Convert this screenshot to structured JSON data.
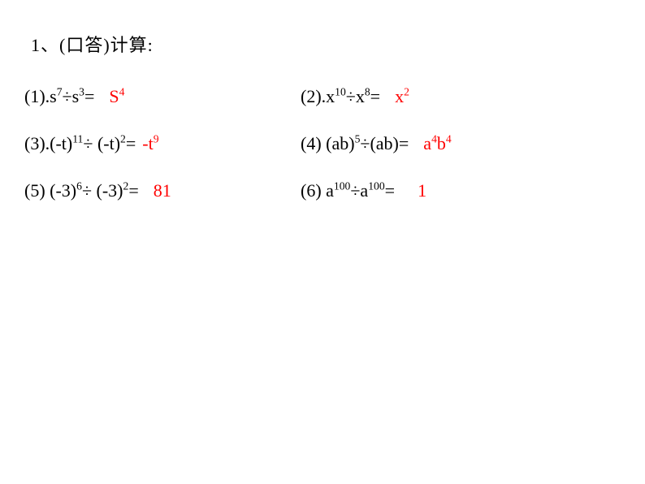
{
  "bg": "#ffffff",
  "text_color": "#000000",
  "answer_color": "#ff0000",
  "font_size": 22,
  "heading": "1、(口答)计算:",
  "rows": [
    {
      "left": {
        "label": "(1).",
        "q_html": "s<sup>7</sup>÷s<sup>3</sup>=",
        "a_html": "S<sup>4</sup>"
      },
      "right": {
        "label": "(2).",
        "q_html": "x<sup>10</sup>÷x<sup>8</sup>=",
        "a_html": "x<sup>2</sup>"
      }
    },
    {
      "left": {
        "label": "(3).",
        "q_html": "(-t)<sup>11</sup>÷ (-t)<sup>2</sup>=",
        "a_html": "-t<sup>9</sup>",
        "answer_margin": 8
      },
      "right": {
        "label": "(4)",
        "q_html": " (ab)<sup>5</sup>÷(ab)=",
        "a_html": "a<sup>4</sup>b<sup>4</sup>"
      }
    },
    {
      "left": {
        "label": "(5)",
        "q_html": " (-3)<sup>6</sup>÷ (-3)<sup>2</sup>=",
        "a_html": "81"
      },
      "right": {
        "label": "(6)",
        "q_html": " a<sup>100</sup>÷a<sup>100</sup>=",
        "a_html": "1",
        "answer_margin": 28
      }
    }
  ]
}
